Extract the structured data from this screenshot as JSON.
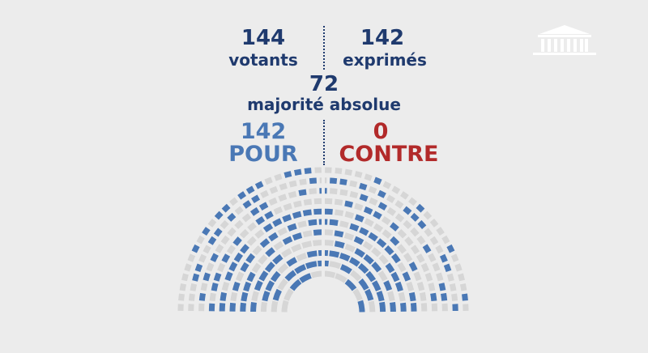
{
  "results": {
    "votants": {
      "value": "144",
      "label": "votants"
    },
    "exprimes": {
      "value": "142",
      "label": "exprimés"
    },
    "majorite": {
      "value": "72",
      "label": "majorité absolue"
    },
    "pour": {
      "value": "142",
      "label": "POUR"
    },
    "contre": {
      "value": "0",
      "label": "CONTRE"
    }
  },
  "hemicycle": {
    "pour_seats": 142,
    "contre_seats": 0,
    "colors": {
      "pour": "#4a78b5",
      "empty": "#d6d6d6",
      "contre": "#b22a2a"
    }
  },
  "colors": {
    "background": "#ececec",
    "navy": "#1f3a6e",
    "pour": "#4a78b5",
    "contre": "#b22a2a"
  },
  "logo": {
    "icon": "assemblee-nationale-building-icon"
  }
}
